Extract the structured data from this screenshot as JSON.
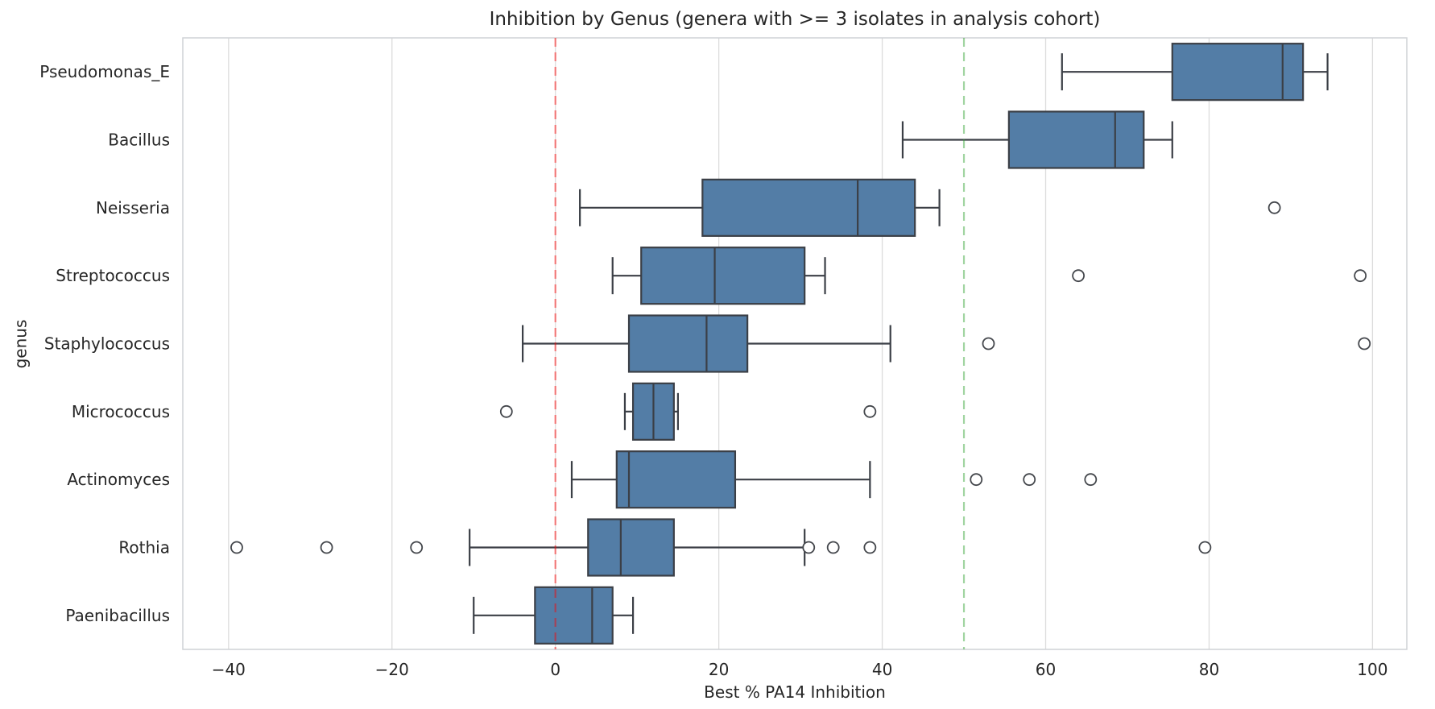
{
  "chart_data": {
    "type": "boxplot",
    "orientation": "horizontal",
    "title": "Inhibition by Genus (genera with >= 3 isolates in analysis cohort)",
    "xlabel": "Best % PA14 Inhibition",
    "ylabel": "genus",
    "xlim": [
      -45.6,
      104.2
    ],
    "xticks": [
      -40,
      -20,
      0,
      20,
      40,
      60,
      80,
      100
    ],
    "grid": "vertical-only",
    "legend": "none",
    "box_color": "#537da6",
    "edge_color": "#3b3f46",
    "outlier_edge_color": "#44474c",
    "grid_color": "#dcdcdc",
    "spine_color": "#cfd2d6",
    "text_color": "#262626",
    "reference_lines": [
      {
        "name": "zero-reference-line",
        "value": 0,
        "color": "#ff0000",
        "opacity": 0.47,
        "style": "dashed"
      },
      {
        "name": "fifty-percent-reference-line",
        "value": 50,
        "color": "#2ca02c",
        "opacity": 0.45,
        "style": "dashed"
      }
    ],
    "groups": [
      {
        "genus": "Pseudomonas_E",
        "whisker_low": 62,
        "q1": 75.5,
        "median": 89,
        "q3": 91.5,
        "whisker_high": 94.5,
        "outliers": []
      },
      {
        "genus": "Bacillus",
        "whisker_low": 42.5,
        "q1": 55.5,
        "median": 68.5,
        "q3": 72,
        "whisker_high": 75.5,
        "outliers": []
      },
      {
        "genus": "Neisseria",
        "whisker_low": 3,
        "q1": 18,
        "median": 37,
        "q3": 44,
        "whisker_high": 47,
        "outliers": [
          88
        ]
      },
      {
        "genus": "Streptococcus",
        "whisker_low": 7,
        "q1": 10.5,
        "median": 19.5,
        "q3": 30.5,
        "whisker_high": 33,
        "outliers": [
          64,
          98.5
        ]
      },
      {
        "genus": "Staphylococcus",
        "whisker_low": -4,
        "q1": 9,
        "median": 18.5,
        "q3": 23.5,
        "whisker_high": 41,
        "outliers": [
          53,
          99
        ]
      },
      {
        "genus": "Micrococcus",
        "whisker_low": 8.5,
        "q1": 9.5,
        "median": 12,
        "q3": 14.5,
        "whisker_high": 15,
        "outliers": [
          -6,
          38.5
        ]
      },
      {
        "genus": "Actinomyces",
        "whisker_low": 2,
        "q1": 7.5,
        "median": 9,
        "q3": 22,
        "whisker_high": 38.5,
        "outliers": [
          51.5,
          58,
          65.5
        ]
      },
      {
        "genus": "Rothia",
        "whisker_low": -10.5,
        "q1": 4,
        "median": 8,
        "q3": 14.5,
        "whisker_high": 30.5,
        "outliers": [
          -39,
          -28,
          -17,
          31,
          34,
          38.5,
          79.5
        ]
      },
      {
        "genus": "Paenibacillus",
        "whisker_low": -10,
        "q1": -2.5,
        "median": 4.5,
        "q3": 7,
        "whisker_high": 9.5,
        "outliers": []
      }
    ]
  }
}
